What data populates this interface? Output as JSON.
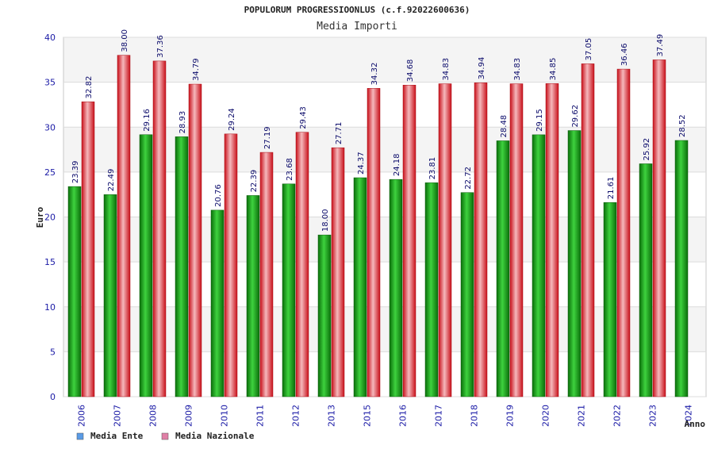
{
  "chart_data": {
    "type": "bar",
    "title": "POPULORUM PROGRESSIOONLUS (c.f.92022600636)",
    "subtitle": "Media Importi",
    "xlabel": "Anno",
    "ylabel": "Euro",
    "ylim": [
      0,
      40
    ],
    "yticks": [
      0,
      5,
      10,
      15,
      20,
      25,
      30,
      35,
      40
    ],
    "grid": true,
    "legend_position": "bottom-left",
    "categories": [
      "2006",
      "2007",
      "2008",
      "2009",
      "2010",
      "2011",
      "2012",
      "2013",
      "2015",
      "2016",
      "2017",
      "2018",
      "2019",
      "2020",
      "2021",
      "2022",
      "2023",
      "2024"
    ],
    "series": [
      {
        "name": "Media Ente",
        "color": "#22b022",
        "legend_color": "#5a9be6",
        "values": [
          23.39,
          22.49,
          29.16,
          28.93,
          20.76,
          22.39,
          23.68,
          18.0,
          24.37,
          24.18,
          23.81,
          22.72,
          28.48,
          29.15,
          29.62,
          21.61,
          25.92,
          28.52
        ],
        "labels": [
          "23.39",
          "22.49",
          "29.16",
          "28.93",
          "20.76",
          "22.39",
          "23.68",
          "18.00",
          "24.37",
          "24.18",
          "23.81",
          "22.72",
          "28.48",
          "29.15",
          "29.62",
          "21.61",
          "25.92",
          "28.52"
        ]
      },
      {
        "name": "Media Nazionale",
        "color": "#e8202a",
        "legend_color": "#e07fa6",
        "values": [
          32.82,
          38.0,
          37.36,
          34.79,
          29.24,
          27.19,
          29.43,
          27.71,
          34.32,
          34.68,
          34.83,
          34.94,
          34.83,
          34.85,
          37.05,
          36.46,
          37.49,
          null
        ],
        "labels": [
          "32.82",
          "38.00",
          "37.36",
          "34.79",
          "29.24",
          "27.19",
          "29.43",
          "27.71",
          "34.32",
          "34.68",
          "34.83",
          "34.94",
          "34.83",
          "34.85",
          "37.05",
          "36.46",
          "37.49",
          null
        ]
      }
    ]
  }
}
